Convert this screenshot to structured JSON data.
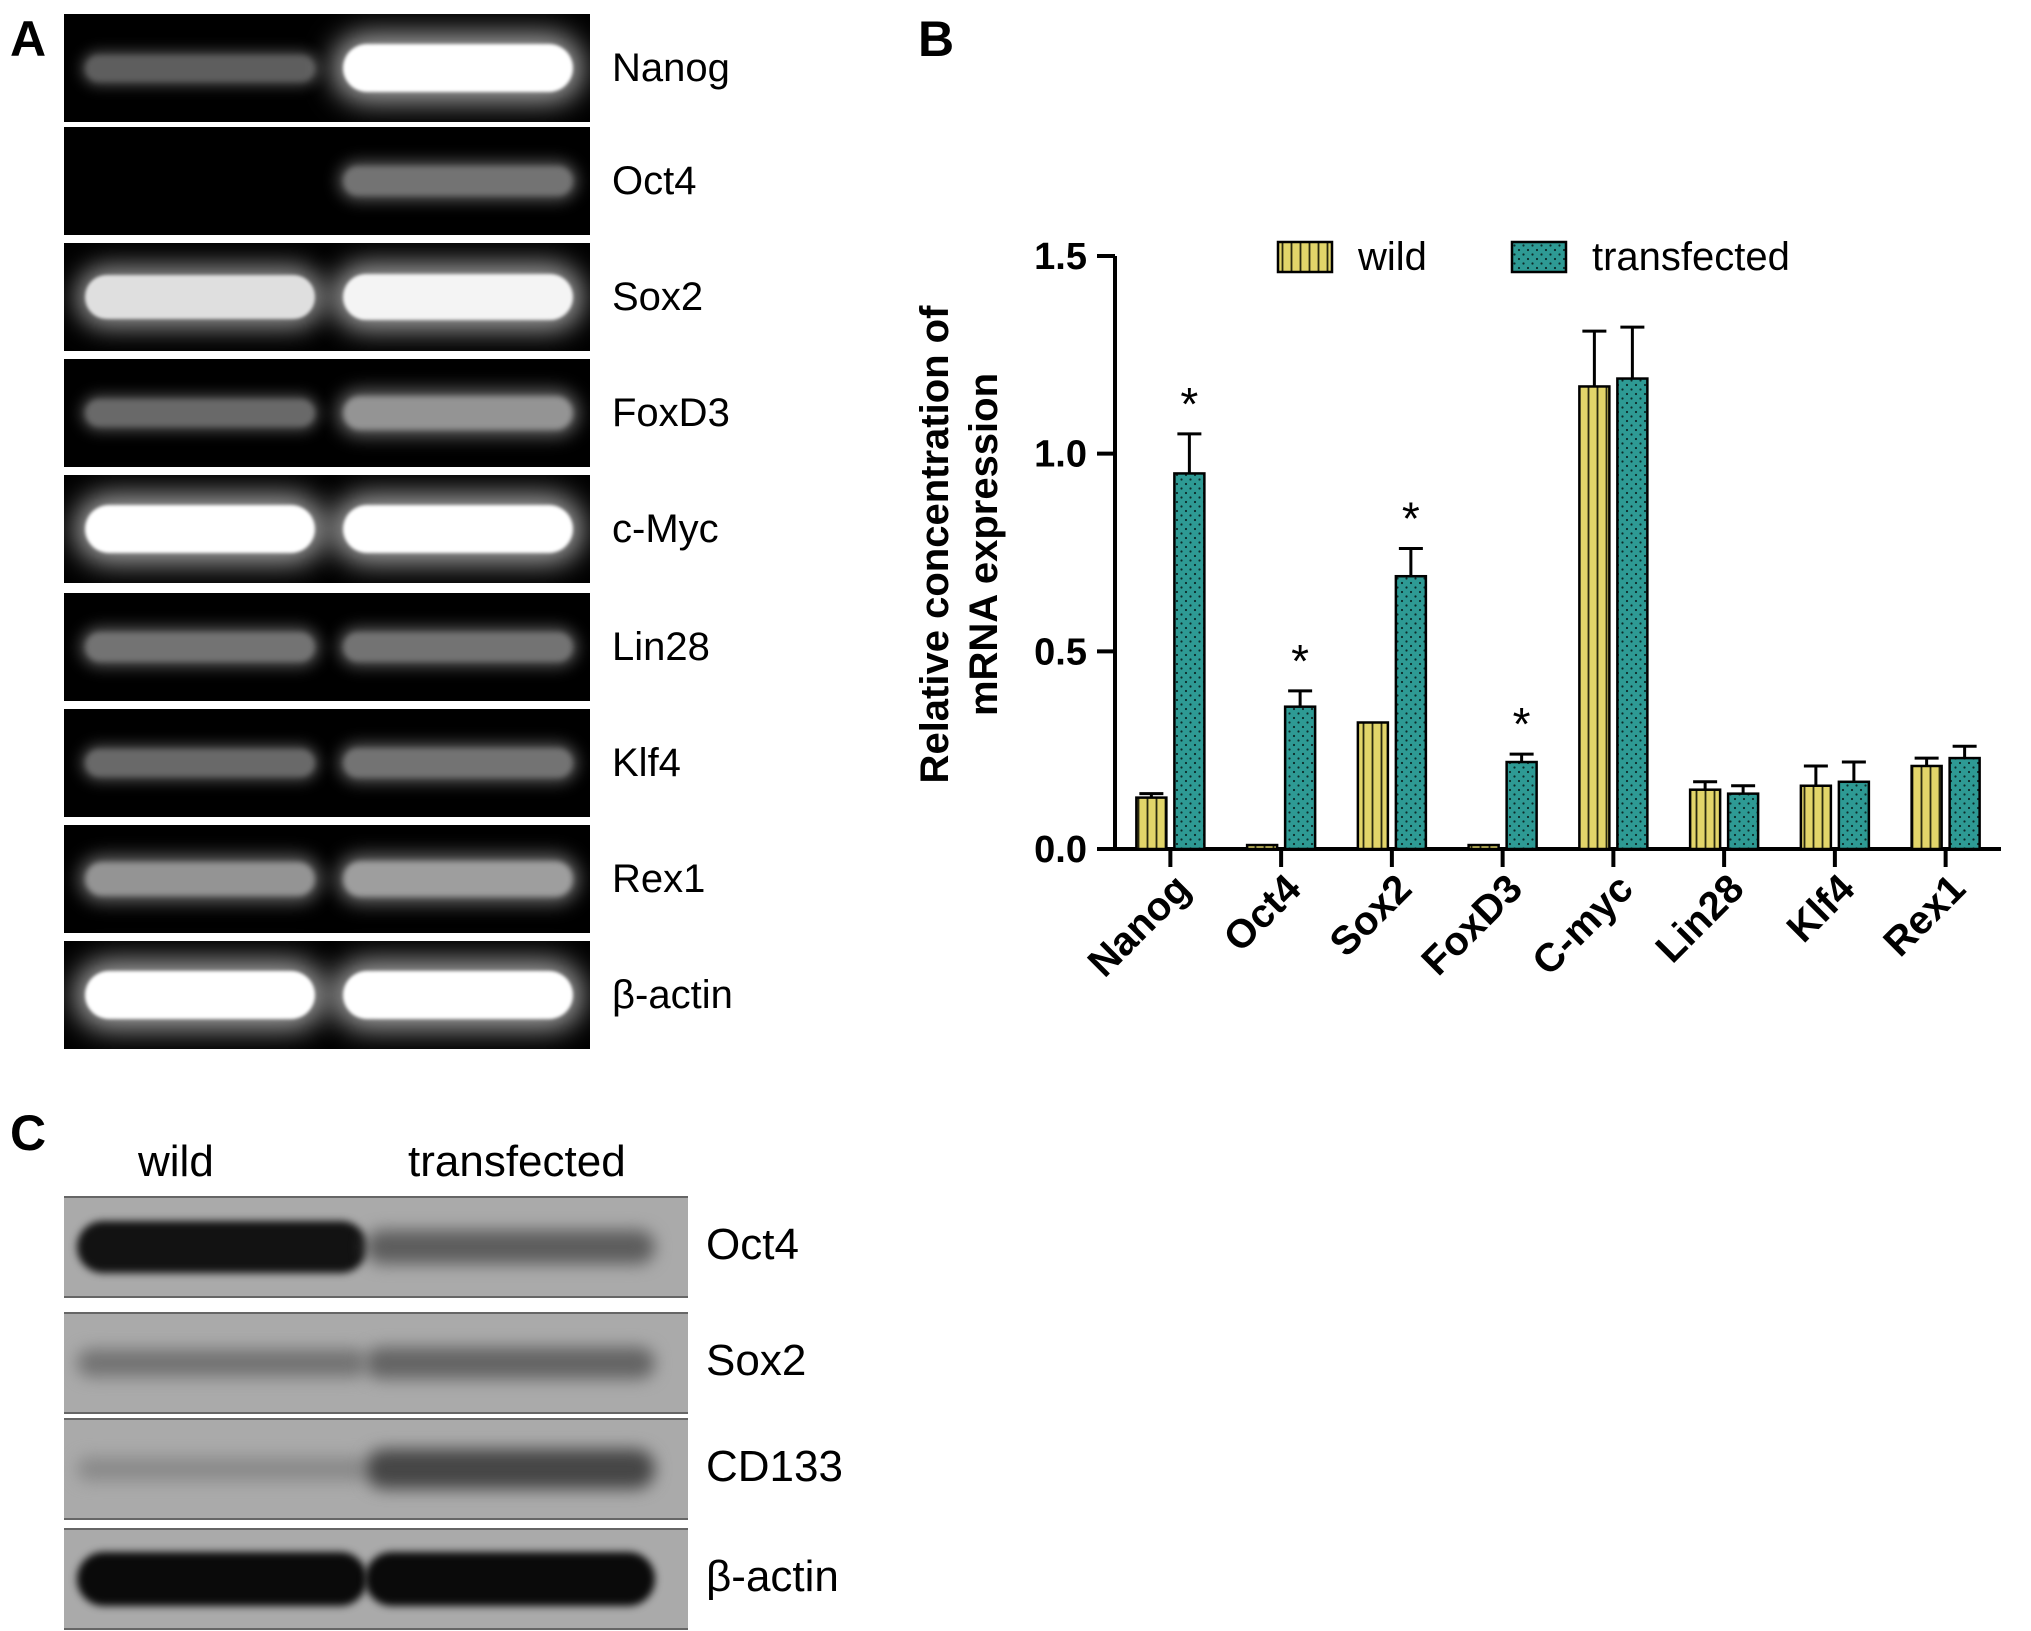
{
  "panels": {
    "a_letter": "A",
    "b_letter": "B",
    "c_letter": "C"
  },
  "gel": {
    "lanes": [
      "wild",
      "transfected"
    ],
    "rows": [
      {
        "label": "Nanog",
        "wild_intensity": 0.25,
        "transfected_intensity": 1.0
      },
      {
        "label": "Oct4",
        "wild_intensity": 0.0,
        "transfected_intensity": 0.35
      },
      {
        "label": "Sox2",
        "wild_intensity": 0.85,
        "transfected_intensity": 0.95
      },
      {
        "label": "FoxD3",
        "wild_intensity": 0.3,
        "transfected_intensity": 0.5
      },
      {
        "label": "c-Myc",
        "wild_intensity": 1.0,
        "transfected_intensity": 1.0
      },
      {
        "label": "Lin28",
        "wild_intensity": 0.35,
        "transfected_intensity": 0.35
      },
      {
        "label": "Klf4",
        "wild_intensity": 0.3,
        "transfected_intensity": 0.35
      },
      {
        "label": "Rex1",
        "wild_intensity": 0.5,
        "transfected_intensity": 0.55
      },
      {
        "label": "β-actin",
        "wild_intensity": 1.0,
        "transfected_intensity": 1.0
      }
    ]
  },
  "western": {
    "lane_labels": [
      "wild",
      "transfected"
    ],
    "rows": [
      {
        "label": "Oct4",
        "wild_intensity": 0.95,
        "transfected_intensity": 0.45
      },
      {
        "label": "Sox2",
        "wild_intensity": 0.3,
        "transfected_intensity": 0.4
      },
      {
        "label": "CD133",
        "wild_intensity": 0.15,
        "transfected_intensity": 0.6
      },
      {
        "label": "β-actin",
        "wild_intensity": 1.0,
        "transfected_intensity": 1.0
      }
    ]
  },
  "chart_data": {
    "type": "bar",
    "ylabel_line1": "Relative concentration of",
    "ylabel_line2": "mRNA expression",
    "xlabel": "",
    "ylim": [
      0,
      1.5
    ],
    "yticks": [
      "0.0",
      "0.5",
      "1.0",
      "1.5"
    ],
    "ytick_values": [
      0,
      0.5,
      1.0,
      1.5
    ],
    "categories": [
      "Nanog",
      "Oct4",
      "Sox2",
      "FoxD3",
      "C-myc",
      "Lin28",
      "Klf4",
      "Rex1"
    ],
    "series": [
      {
        "name": "wild",
        "color": "#e0d366",
        "pattern": "vertical-lines",
        "values": [
          0.13,
          0.01,
          0.32,
          0.01,
          1.17,
          0.15,
          0.16,
          0.21
        ],
        "errors": [
          0.01,
          0.0,
          0.0,
          0.0,
          0.14,
          0.02,
          0.05,
          0.02
        ]
      },
      {
        "name": "transfected",
        "color": "#2e9a94",
        "pattern": "dots",
        "values": [
          0.95,
          0.36,
          0.69,
          0.22,
          1.19,
          0.14,
          0.17,
          0.23
        ],
        "errors": [
          0.1,
          0.04,
          0.07,
          0.02,
          0.13,
          0.02,
          0.05,
          0.03
        ]
      }
    ],
    "significance": [
      "*",
      "*",
      "*",
      "*",
      "",
      "",
      "",
      ""
    ],
    "legend_position": "top"
  }
}
